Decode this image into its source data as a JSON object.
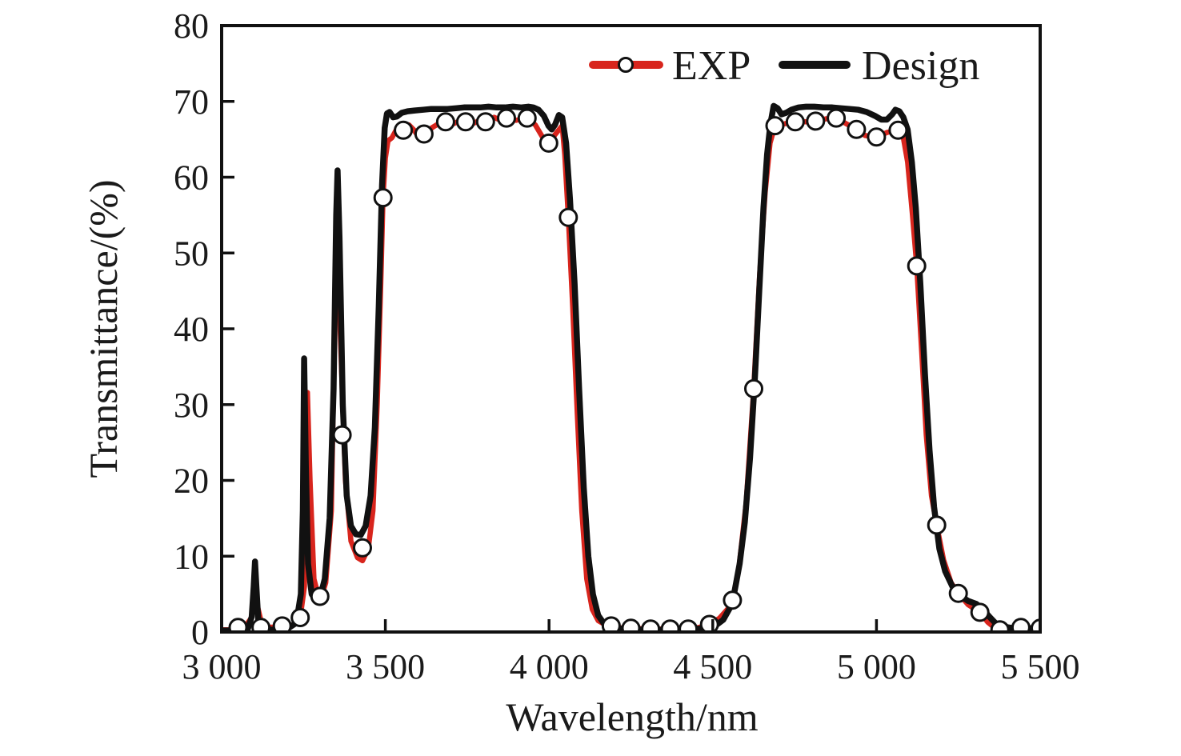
{
  "chart_data": {
    "type": "line",
    "title": "",
    "xlabel": "Wavelength/nm",
    "ylabel": "Transmittance/(%)",
    "xlim": [
      3000,
      5500
    ],
    "ylim": [
      0,
      80
    ],
    "grid": false,
    "x_ticks": [
      3000,
      3500,
      4000,
      4500,
      5000,
      5500
    ],
    "x_tick_labels": [
      "3 000",
      "3 500",
      "4 000",
      "4 500",
      "5 000",
      "5 500"
    ],
    "y_ticks": [
      0,
      10,
      20,
      30,
      40,
      50,
      60,
      70,
      80
    ],
    "y_tick_labels": [
      "0",
      "10",
      "20",
      "30",
      "40",
      "50",
      "60",
      "70",
      "80"
    ],
    "legend": {
      "position": "top-inside",
      "items": [
        {
          "label": "EXP",
          "color": "#d8251d",
          "marker": "open-circle"
        },
        {
          "label": "Design",
          "color": "#111111",
          "marker": "none"
        }
      ]
    },
    "series": [
      {
        "name": "EXP",
        "color": "#d8251d",
        "line_width": 6.5,
        "points": [
          [
            3000,
            0.3
          ],
          [
            3040,
            0.3
          ],
          [
            3070,
            0.6
          ],
          [
            3090,
            1.8
          ],
          [
            3105,
            4.2
          ],
          [
            3120,
            1.5
          ],
          [
            3140,
            0.6
          ],
          [
            3185,
            0.7
          ],
          [
            3220,
            1.0
          ],
          [
            3240,
            1.9
          ],
          [
            3253,
            6.0
          ],
          [
            3262,
            31.6
          ],
          [
            3270,
            20.0
          ],
          [
            3282,
            7.0
          ],
          [
            3295,
            4.8
          ],
          [
            3305,
            4.7
          ],
          [
            3318,
            6.5
          ],
          [
            3335,
            16.0
          ],
          [
            3352,
            57.0
          ],
          [
            3362,
            40.0
          ],
          [
            3378,
            20.0
          ],
          [
            3395,
            12.0
          ],
          [
            3415,
            9.8
          ],
          [
            3430,
            9.4
          ],
          [
            3448,
            11.0
          ],
          [
            3462,
            16.0
          ],
          [
            3475,
            30.0
          ],
          [
            3486,
            46.0
          ],
          [
            3493,
            57.3
          ],
          [
            3500,
            62.5
          ],
          [
            3508,
            64.8
          ],
          [
            3520,
            65.2
          ],
          [
            3538,
            66.6
          ],
          [
            3555,
            66.2
          ],
          [
            3572,
            66.9
          ],
          [
            3588,
            66.2
          ],
          [
            3602,
            65.3
          ],
          [
            3618,
            65.7
          ],
          [
            3645,
            66.6
          ],
          [
            3668,
            67.2
          ],
          [
            3684,
            67.3
          ],
          [
            3705,
            67.0
          ],
          [
            3726,
            67.4
          ],
          [
            3745,
            67.3
          ],
          [
            3768,
            67.1
          ],
          [
            3790,
            67.5
          ],
          [
            3806,
            67.3
          ],
          [
            3832,
            67.9
          ],
          [
            3852,
            67.5
          ],
          [
            3870,
            67.8
          ],
          [
            3900,
            67.5
          ],
          [
            3917,
            67.7
          ],
          [
            3933,
            67.8
          ],
          [
            3958,
            66.9
          ],
          [
            3980,
            65.3
          ],
          [
            3999,
            64.5
          ],
          [
            4018,
            65.6
          ],
          [
            4040,
            66.8
          ],
          [
            4048,
            63.0
          ],
          [
            4059,
            54.7
          ],
          [
            4072,
            43.0
          ],
          [
            4086,
            29.0
          ],
          [
            4100,
            16.0
          ],
          [
            4115,
            7.0
          ],
          [
            4132,
            3.0
          ],
          [
            4150,
            1.5
          ],
          [
            4170,
            1.0
          ],
          [
            4190,
            0.8
          ],
          [
            4225,
            0.5
          ],
          [
            4250,
            0.5
          ],
          [
            4310,
            0.4
          ],
          [
            4370,
            0.4
          ],
          [
            4425,
            0.4
          ],
          [
            4458,
            0.6
          ],
          [
            4490,
            1.0
          ],
          [
            4520,
            1.8
          ],
          [
            4545,
            3.0
          ],
          [
            4560,
            4.2
          ],
          [
            4580,
            8.5
          ],
          [
            4602,
            17.0
          ],
          [
            4625,
            32.1
          ],
          [
            4643,
            47.0
          ],
          [
            4660,
            58.0
          ],
          [
            4675,
            64.5
          ],
          [
            4690,
            66.8
          ],
          [
            4715,
            67.0
          ],
          [
            4735,
            67.2
          ],
          [
            4752,
            67.3
          ],
          [
            4785,
            67.3
          ],
          [
            4814,
            67.4
          ],
          [
            4846,
            67.7
          ],
          [
            4877,
            67.8
          ],
          [
            4902,
            67.2
          ],
          [
            4922,
            66.7
          ],
          [
            4939,
            66.3
          ],
          [
            4965,
            65.5
          ],
          [
            5000,
            65.3
          ],
          [
            5032,
            65.9
          ],
          [
            5066,
            66.2
          ],
          [
            5082,
            65.2
          ],
          [
            5095,
            62.0
          ],
          [
            5110,
            55.0
          ],
          [
            5123,
            48.3
          ],
          [
            5138,
            37.0
          ],
          [
            5152,
            26.0
          ],
          [
            5168,
            18.0
          ],
          [
            5184,
            14.1
          ],
          [
            5205,
            9.5
          ],
          [
            5228,
            6.5
          ],
          [
            5250,
            5.1
          ],
          [
            5280,
            3.6
          ],
          [
            5316,
            2.6
          ],
          [
            5340,
            1.3
          ],
          [
            5360,
            0.6
          ],
          [
            5377,
            0.3
          ],
          [
            5400,
            0.4
          ],
          [
            5441,
            0.6
          ],
          [
            5470,
            0.5
          ],
          [
            5500,
            0.4
          ]
        ],
        "markers": [
          [
            3050,
            0.6
          ],
          [
            3120,
            0.6
          ],
          [
            3185,
            0.8
          ],
          [
            3240,
            1.9
          ],
          [
            3300,
            4.7
          ],
          [
            3368,
            26.0
          ],
          [
            3430,
            11.1
          ],
          [
            3493,
            57.3
          ],
          [
            3555,
            66.2
          ],
          [
            3618,
            65.7
          ],
          [
            3684,
            67.3
          ],
          [
            3745,
            67.3
          ],
          [
            3806,
            67.3
          ],
          [
            3870,
            67.8
          ],
          [
            3933,
            67.8
          ],
          [
            3999,
            64.5
          ],
          [
            4059,
            54.7
          ],
          [
            4190,
            0.8
          ],
          [
            4250,
            0.5
          ],
          [
            4310,
            0.4
          ],
          [
            4370,
            0.4
          ],
          [
            4425,
            0.4
          ],
          [
            4490,
            1.0
          ],
          [
            4560,
            4.2
          ],
          [
            4625,
            32.1
          ],
          [
            4690,
            66.8
          ],
          [
            4752,
            67.3
          ],
          [
            4814,
            67.4
          ],
          [
            4877,
            67.8
          ],
          [
            4939,
            66.3
          ],
          [
            5000,
            65.3
          ],
          [
            5066,
            66.2
          ],
          [
            5123,
            48.3
          ],
          [
            5184,
            14.1
          ],
          [
            5250,
            5.1
          ],
          [
            5316,
            2.6
          ],
          [
            5377,
            0.3
          ],
          [
            5441,
            0.6
          ],
          [
            5500,
            0.5
          ]
        ],
        "marker_style": {
          "shape": "circle",
          "radius": 10.5,
          "fill": "#ffffff",
          "stroke": "#111111",
          "stroke_width": 3
        }
      },
      {
        "name": "Design",
        "color": "#111111",
        "line_width": 7.5,
        "points": [
          [
            3000,
            0.2
          ],
          [
            3060,
            0.2
          ],
          [
            3080,
            0.4
          ],
          [
            3092,
            2.0
          ],
          [
            3098,
            6.0
          ],
          [
            3102,
            9.3
          ],
          [
            3106,
            6.0
          ],
          [
            3112,
            1.5
          ],
          [
            3125,
            0.4
          ],
          [
            3160,
            0.3
          ],
          [
            3200,
            0.4
          ],
          [
            3228,
            1.2
          ],
          [
            3242,
            5.0
          ],
          [
            3248,
            16.0
          ],
          [
            3252,
            36.1
          ],
          [
            3257,
            22.0
          ],
          [
            3264,
            9.0
          ],
          [
            3275,
            5.0
          ],
          [
            3288,
            4.2
          ],
          [
            3300,
            4.5
          ],
          [
            3315,
            7.0
          ],
          [
            3330,
            15.0
          ],
          [
            3342,
            32.0
          ],
          [
            3350,
            55.0
          ],
          [
            3354,
            60.9
          ],
          [
            3360,
            52.0
          ],
          [
            3370,
            30.0
          ],
          [
            3382,
            18.0
          ],
          [
            3395,
            14.0
          ],
          [
            3410,
            12.9
          ],
          [
            3425,
            12.8
          ],
          [
            3440,
            14.0
          ],
          [
            3455,
            18.0
          ],
          [
            3468,
            27.0
          ],
          [
            3480,
            43.0
          ],
          [
            3490,
            59.0
          ],
          [
            3498,
            66.5
          ],
          [
            3505,
            68.4
          ],
          [
            3513,
            68.6
          ],
          [
            3524,
            67.9
          ],
          [
            3535,
            68.0
          ],
          [
            3550,
            68.5
          ],
          [
            3568,
            68.7
          ],
          [
            3590,
            68.8
          ],
          [
            3615,
            68.9
          ],
          [
            3640,
            69.0
          ],
          [
            3665,
            69.0
          ],
          [
            3690,
            69.0
          ],
          [
            3715,
            69.1
          ],
          [
            3740,
            69.2
          ],
          [
            3765,
            69.2
          ],
          [
            3790,
            69.2
          ],
          [
            3815,
            69.3
          ],
          [
            3840,
            69.2
          ],
          [
            3865,
            69.2
          ],
          [
            3890,
            69.3
          ],
          [
            3915,
            69.2
          ],
          [
            3938,
            69.3
          ],
          [
            3952,
            69.2
          ],
          [
            3968,
            68.9
          ],
          [
            3984,
            68.1
          ],
          [
            3998,
            66.8
          ],
          [
            4008,
            66.3
          ],
          [
            4018,
            66.9
          ],
          [
            4030,
            68.2
          ],
          [
            4040,
            67.9
          ],
          [
            4052,
            64.5
          ],
          [
            4064,
            57.0
          ],
          [
            4078,
            46.0
          ],
          [
            4092,
            32.0
          ],
          [
            4106,
            19.0
          ],
          [
            4120,
            10.0
          ],
          [
            4134,
            5.0
          ],
          [
            4150,
            2.2
          ],
          [
            4168,
            1.1
          ],
          [
            4190,
            0.6
          ],
          [
            4230,
            0.4
          ],
          [
            4300,
            0.3
          ],
          [
            4380,
            0.3
          ],
          [
            4440,
            0.4
          ],
          [
            4480,
            0.5
          ],
          [
            4510,
            0.9
          ],
          [
            4532,
            1.6
          ],
          [
            4550,
            3.0
          ],
          [
            4565,
            5.0
          ],
          [
            4582,
            9.0
          ],
          [
            4598,
            14.5
          ],
          [
            4614,
            23.0
          ],
          [
            4628,
            33.0
          ],
          [
            4642,
            45.0
          ],
          [
            4655,
            56.0
          ],
          [
            4666,
            63.0
          ],
          [
            4676,
            67.0
          ],
          [
            4686,
            69.4
          ],
          [
            4698,
            69.1
          ],
          [
            4710,
            68.3
          ],
          [
            4724,
            68.5
          ],
          [
            4740,
            68.9
          ],
          [
            4762,
            69.2
          ],
          [
            4785,
            69.3
          ],
          [
            4810,
            69.3
          ],
          [
            4838,
            69.2
          ],
          [
            4865,
            69.2
          ],
          [
            4892,
            69.1
          ],
          [
            4918,
            69.0
          ],
          [
            4945,
            68.9
          ],
          [
            4970,
            68.6
          ],
          [
            4995,
            68.1
          ],
          [
            5015,
            67.6
          ],
          [
            5032,
            67.6
          ],
          [
            5048,
            68.3
          ],
          [
            5058,
            68.9
          ],
          [
            5070,
            68.7
          ],
          [
            5082,
            67.9
          ],
          [
            5095,
            66.3
          ],
          [
            5108,
            62.0
          ],
          [
            5120,
            56.0
          ],
          [
            5134,
            46.0
          ],
          [
            5148,
            34.0
          ],
          [
            5162,
            24.0
          ],
          [
            5176,
            16.5
          ],
          [
            5192,
            11.0
          ],
          [
            5210,
            8.0
          ],
          [
            5232,
            6.0
          ],
          [
            5255,
            4.8
          ],
          [
            5280,
            4.1
          ],
          [
            5305,
            3.7
          ],
          [
            5325,
            3.0
          ],
          [
            5345,
            2.0
          ],
          [
            5365,
            1.1
          ],
          [
            5390,
            0.7
          ],
          [
            5420,
            0.5
          ],
          [
            5460,
            0.5
          ],
          [
            5500,
            0.5
          ]
        ],
        "markers": [],
        "marker_style": null
      }
    ]
  }
}
